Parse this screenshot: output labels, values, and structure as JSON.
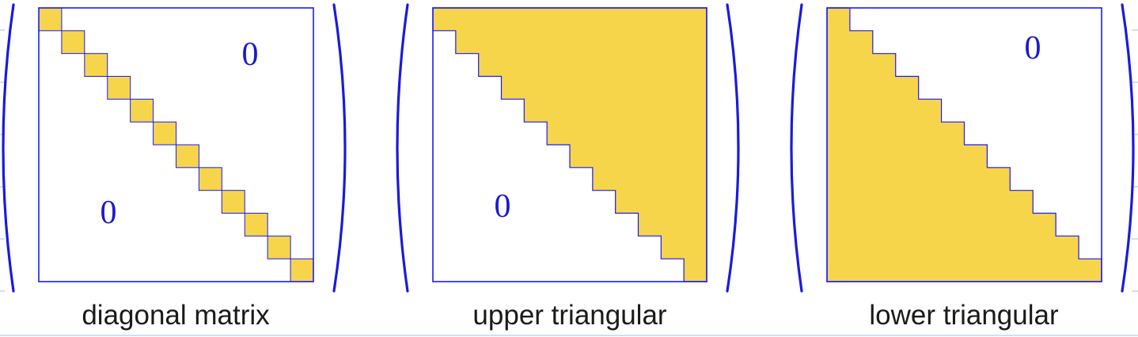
{
  "colors": {
    "fill": "#f7d54a",
    "stroke": "#1a1aff",
    "paren": "#1a1adb",
    "zero": "#1a1acc",
    "caption": "#1a1a1a",
    "guide": "#9fc3e6"
  },
  "matrix_size": 12,
  "panels": [
    {
      "id": "diagonal",
      "kind": "diagonal",
      "zero_label": "0",
      "zero_count": 2,
      "caption": "diagonal matrix"
    },
    {
      "id": "upper",
      "kind": "upper",
      "zero_label": "0",
      "zero_count": 1,
      "caption": "upper triangular"
    },
    {
      "id": "lower",
      "kind": "lower",
      "zero_label": "0",
      "zero_count": 1,
      "caption": "lower triangular"
    }
  ]
}
